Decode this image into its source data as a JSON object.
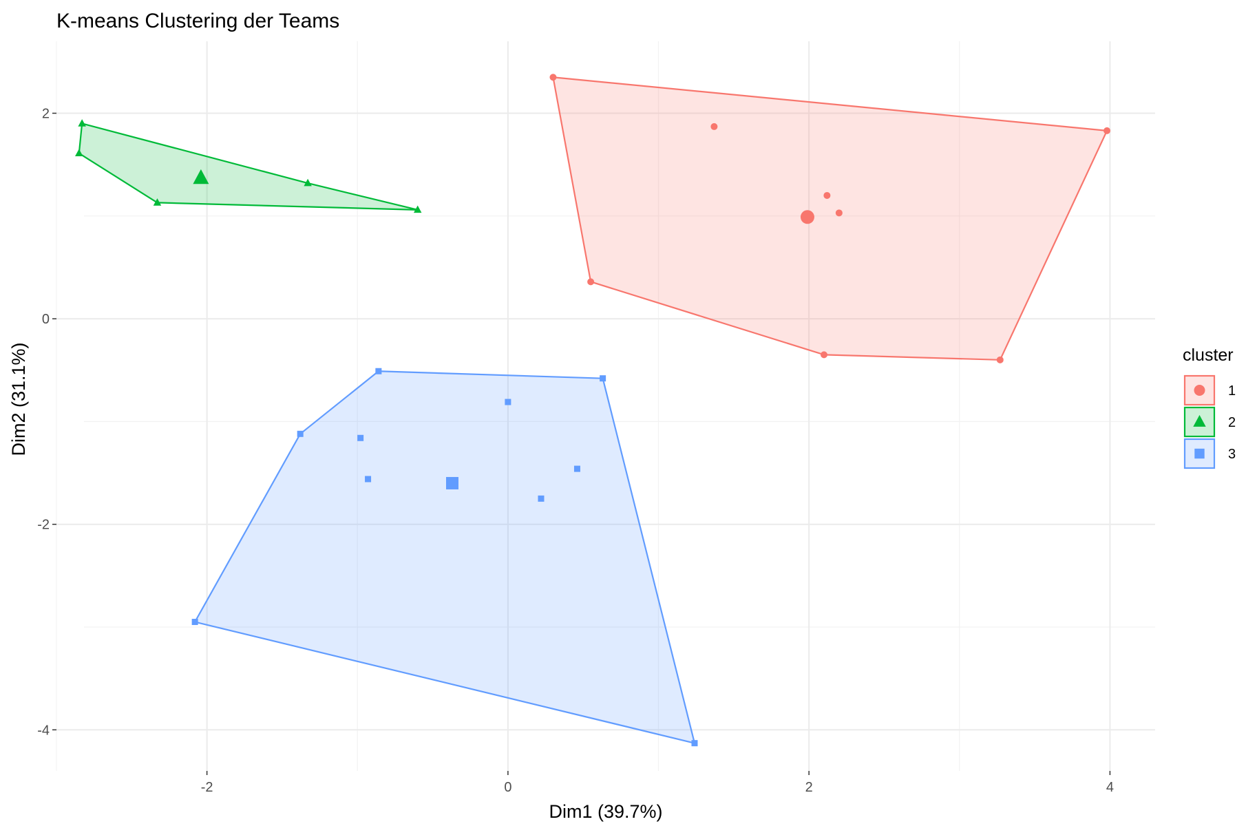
{
  "chart_data": {
    "type": "scatter",
    "title": "K-means Clustering der Teams",
    "xlabel": "Dim1 (39.7%)",
    "ylabel": "Dim2 (31.1%)",
    "xlim": [
      -3.0,
      4.3
    ],
    "ylim": [
      -4.4,
      2.7
    ],
    "xticks": [
      -2,
      0,
      2,
      4
    ],
    "xtick_labels": [
      "-2",
      "0",
      "2",
      "4"
    ],
    "yticks": [
      2,
      0,
      -2,
      -4
    ],
    "ytick_labels": [
      "2",
      "0",
      "-2",
      "-4"
    ],
    "grid": true,
    "legend": {
      "title": "cluster",
      "position": "right"
    },
    "series": [
      {
        "name": "1",
        "color": "#F8766D",
        "shape": "circle",
        "hull": [
          [
            0.3,
            2.35
          ],
          [
            3.98,
            1.83
          ],
          [
            3.27,
            -0.4
          ],
          [
            2.1,
            -0.35
          ],
          [
            0.55,
            0.36
          ]
        ],
        "points": [
          [
            0.3,
            2.35
          ],
          [
            1.37,
            1.87
          ],
          [
            3.98,
            1.83
          ],
          [
            2.12,
            1.2
          ],
          [
            2.2,
            1.03
          ],
          [
            0.55,
            0.36
          ],
          [
            2.1,
            -0.35
          ],
          [
            3.27,
            -0.4
          ]
        ],
        "center": [
          1.99,
          0.99
        ]
      },
      {
        "name": "2",
        "color": "#00BA38",
        "shape": "triangle",
        "hull": [
          [
            -2.83,
            1.9
          ],
          [
            -1.33,
            1.32
          ],
          [
            -0.6,
            1.06
          ],
          [
            -2.33,
            1.13
          ],
          [
            -2.85,
            1.61
          ]
        ],
        "points": [
          [
            -2.83,
            1.9
          ],
          [
            -2.85,
            1.61
          ],
          [
            -1.33,
            1.32
          ],
          [
            -2.33,
            1.13
          ],
          [
            -0.6,
            1.06
          ]
        ],
        "center": [
          -2.04,
          1.37
        ]
      },
      {
        "name": "3",
        "color": "#619CFF",
        "shape": "square",
        "hull": [
          [
            -0.86,
            -0.51
          ],
          [
            0.63,
            -0.58
          ],
          [
            1.24,
            -4.13
          ],
          [
            -2.08,
            -2.95
          ],
          [
            -1.38,
            -1.12
          ]
        ],
        "points": [
          [
            -0.86,
            -0.51
          ],
          [
            0.63,
            -0.58
          ],
          [
            0.0,
            -0.81
          ],
          [
            -1.38,
            -1.12
          ],
          [
            -0.98,
            -1.16
          ],
          [
            0.46,
            -1.46
          ],
          [
            -0.93,
            -1.56
          ],
          [
            0.22,
            -1.75
          ],
          [
            -2.08,
            -2.95
          ],
          [
            1.24,
            -4.13
          ]
        ],
        "center": [
          -0.37,
          -1.6
        ]
      }
    ]
  }
}
